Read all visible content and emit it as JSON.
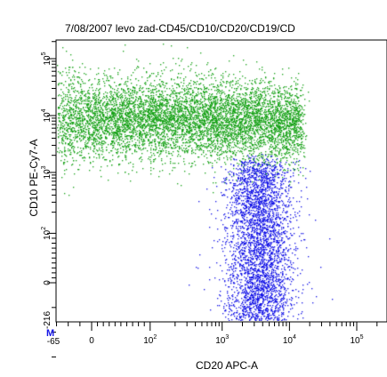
{
  "chart_data": {
    "type": "scatter",
    "title": "7/08/2007 levo zad-CD45/CD10/CD20/CD19/CD",
    "xlabel": "CD20 APC-A",
    "ylabel": "CD10 PE-Cy7-A",
    "xscale": "biexponential",
    "yscale": "biexponential",
    "xlim": [
      -65,
      300000
    ],
    "ylim": [
      -216,
      200000
    ],
    "x_ticks": [
      {
        "value": -65,
        "base": "-65",
        "exp": ""
      },
      {
        "value": 0,
        "base": "0",
        "exp": ""
      },
      {
        "value": 100,
        "base": "10",
        "exp": "2"
      },
      {
        "value": 1000,
        "base": "10",
        "exp": "3"
      },
      {
        "value": 10000,
        "base": "10",
        "exp": "4"
      },
      {
        "value": 100000,
        "base": "10",
        "exp": "5"
      }
    ],
    "y_ticks": [
      {
        "value": -216,
        "base": "-216",
        "exp": ""
      },
      {
        "value": 0,
        "base": "0",
        "exp": ""
      },
      {
        "value": 100,
        "base": "10",
        "exp": "2"
      },
      {
        "value": 1000,
        "base": "10",
        "exp": "3"
      },
      {
        "value": 10000,
        "base": "10",
        "exp": "4"
      },
      {
        "value": 100000,
        "base": "10",
        "exp": "5"
      }
    ],
    "marker_label": "M",
    "grid": false,
    "series": [
      {
        "color": "#1aa21a",
        "population": "CD10 high across CD20 range",
        "cluster": {
          "x_range": [
            -60,
            15000
          ],
          "y_center": 9000,
          "y_spread_decades": 0.35
        },
        "approx_points": 7000
      },
      {
        "color": "#1515e6",
        "population": "CD20 bright, CD10 low",
        "cluster": {
          "x_center": 3500,
          "x_spread_decades": 0.25,
          "y_range": [
            -150,
            1500
          ]
        },
        "approx_points": 4200
      }
    ]
  }
}
